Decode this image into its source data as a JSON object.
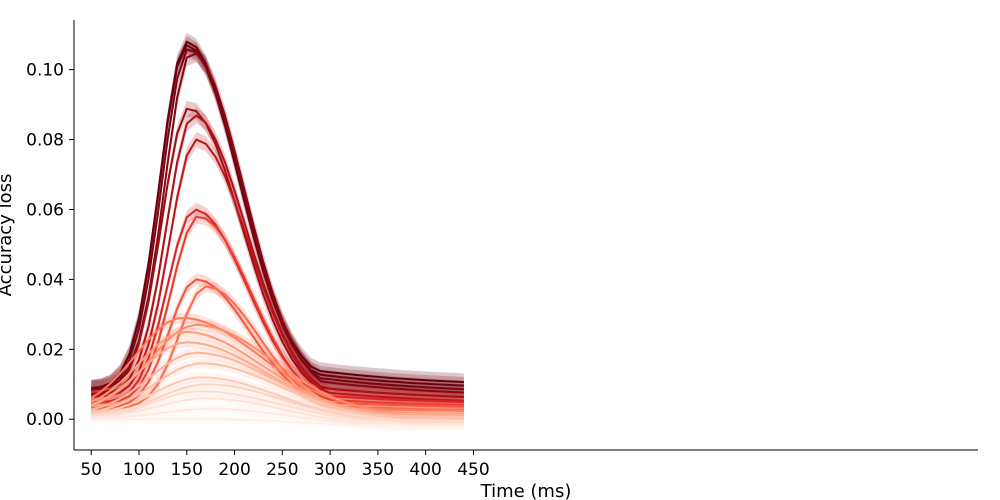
{
  "chart_data": {
    "type": "line",
    "title": "",
    "xlabel": "Time (ms)",
    "ylabel": "Accuracy loss",
    "xlim": [
      32,
      978
    ],
    "ylim": [
      -0.0088,
      0.1142
    ],
    "xticks": [
      50,
      100,
      150,
      200,
      250,
      300,
      350,
      400,
      450
    ],
    "yticks": [
      0.0,
      0.02,
      0.04,
      0.06,
      0.08,
      0.1
    ],
    "ytick_labels": [
      "0.00",
      "0.02",
      "0.04",
      "0.06",
      "0.08",
      "0.10"
    ],
    "x": [
      50,
      60,
      70,
      80,
      90,
      100,
      110,
      120,
      130,
      140,
      150,
      160,
      170,
      180,
      190,
      200,
      210,
      220,
      230,
      240,
      250,
      260,
      270,
      280,
      290,
      300,
      310,
      320,
      330,
      340,
      350,
      360,
      370,
      380,
      390,
      400,
      410,
      420,
      430,
      440
    ],
    "grid": false,
    "legend": "none",
    "shaded_error_bands": true,
    "color_ramp": "light-to-dark red by peak height",
    "series": [
      {
        "peak": 0.108,
        "peak_x": 150,
        "end": 0.009,
        "color": "#67000d"
      },
      {
        "peak": 0.107,
        "peak_x": 150,
        "end": 0.008,
        "color": "#6e010f"
      },
      {
        "peak": 0.106,
        "peak_x": 152,
        "end": 0.007,
        "color": "#7a0410"
      },
      {
        "peak": 0.105,
        "peak_x": 155,
        "end": 0.006,
        "color": "#860712"
      },
      {
        "peak": 0.089,
        "peak_x": 152,
        "end": 0.005,
        "color": "#9c0d14"
      },
      {
        "peak": 0.087,
        "peak_x": 157,
        "end": 0.005,
        "color": "#ad1116"
      },
      {
        "peak": 0.08,
        "peak_x": 160,
        "end": 0.004,
        "color": "#bf151a"
      },
      {
        "peak": 0.06,
        "peak_x": 158,
        "end": 0.004,
        "color": "#d92523"
      },
      {
        "peak": 0.058,
        "peak_x": 162,
        "end": 0.003,
        "color": "#e93b2f"
      },
      {
        "peak": 0.04,
        "peak_x": 160,
        "end": 0.003,
        "color": "#f4553e"
      },
      {
        "peak": 0.038,
        "peak_x": 170,
        "end": 0.002,
        "color": "#f96a4d"
      },
      {
        "peak": 0.029,
        "peak_x": 145,
        "end": 0.002,
        "color": "#fb7d5d"
      },
      {
        "peak": 0.027,
        "peak_x": 160,
        "end": 0.001,
        "color": "#fc8d6d"
      },
      {
        "peak": 0.025,
        "peak_x": 148,
        "end": 0.001,
        "color": "#fc9b7d"
      },
      {
        "peak": 0.022,
        "peak_x": 150,
        "end": 0.001,
        "color": "#fca98c"
      },
      {
        "peak": 0.019,
        "peak_x": 160,
        "end": 0.0,
        "color": "#fcb59c"
      },
      {
        "peak": 0.016,
        "peak_x": 165,
        "end": 0.0,
        "color": "#fdc1aa"
      },
      {
        "peak": 0.012,
        "peak_x": 165,
        "end": -0.001,
        "color": "#fdcbb7"
      },
      {
        "peak": 0.01,
        "peak_x": 170,
        "end": -0.001,
        "color": "#fdd4c2"
      },
      {
        "peak": 0.008,
        "peak_x": 165,
        "end": -0.001,
        "color": "#fedccd"
      },
      {
        "peak": 0.006,
        "peak_x": 170,
        "end": -0.002,
        "color": "#fee3d7"
      },
      {
        "peak": 0.003,
        "peak_x": 175,
        "end": -0.002,
        "color": "#feeae1"
      },
      {
        "peak": 0.0,
        "peak_x": 180,
        "end": -0.002,
        "color": "#fff0ea"
      }
    ]
  }
}
